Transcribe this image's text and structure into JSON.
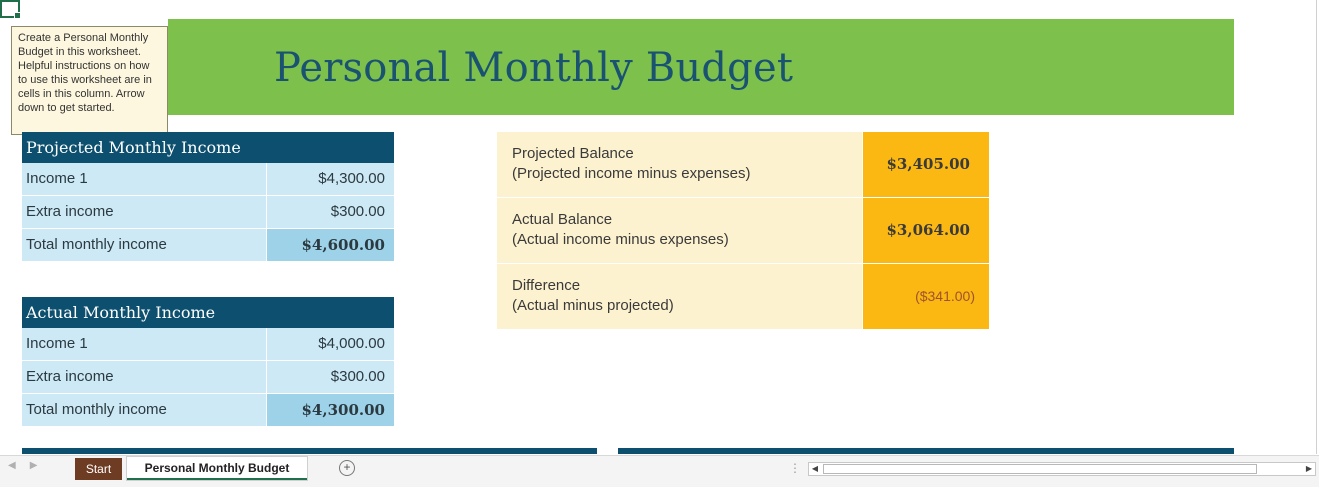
{
  "tooltip": {
    "text": "Create a Personal Monthly Budget in this worksheet. Helpful instructions on how to use this worksheet are in cells in this column. Arrow down to get started."
  },
  "title": "Personal Monthly Budget",
  "projected_income": {
    "header": "Projected Monthly Income",
    "rows": [
      {
        "label": "Income 1",
        "value": "$4,300.00"
      },
      {
        "label": "Extra income",
        "value": "$300.00"
      },
      {
        "label": "Total monthly income",
        "value": "$4,600.00"
      }
    ]
  },
  "actual_income": {
    "header": "Actual Monthly Income",
    "rows": [
      {
        "label": "Income 1",
        "value": "$4,000.00"
      },
      {
        "label": "Extra income",
        "value": "$300.00"
      },
      {
        "label": "Total monthly income",
        "value": "$4,300.00"
      }
    ]
  },
  "balance": [
    {
      "label": "Projected Balance",
      "sub": "(Projected income minus expenses)",
      "value": "$3,405.00"
    },
    {
      "label": "Actual Balance",
      "sub": "(Actual income minus expenses)",
      "value": "$3,064.00"
    },
    {
      "label": "Difference",
      "sub": "(Actual minus projected)",
      "value": "($341.00)"
    }
  ],
  "sheet_tabs": [
    {
      "label": "Start",
      "active": false
    },
    {
      "label": "Personal Monthly Budget",
      "active": true
    }
  ],
  "icons": {
    "add_sheet": "plus-circle-icon",
    "scroll_left": "chevron-left-icon",
    "scroll_right": "chevron-right-icon"
  },
  "colors": {
    "title_band": "#7dc04b",
    "title_text": "#1a5272",
    "table_header": "#0d4f6e",
    "table_cell": "#cde9f5",
    "table_total": "#9ed2e9",
    "balance_label": "#fdf2cf",
    "balance_value": "#fcb812",
    "start_tab": "#6e3b23"
  }
}
